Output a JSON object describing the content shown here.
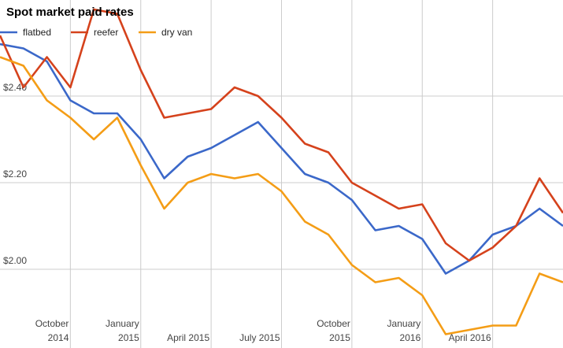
{
  "chart_data": {
    "type": "line",
    "title": "Spot market paid rates",
    "categories": [
      null,
      null,
      null,
      "October 2014",
      null,
      null,
      "January 2015",
      null,
      null,
      "April 2015",
      null,
      null,
      "July 2015",
      null,
      null,
      "October 2015",
      null,
      null,
      "January 2016",
      null,
      null,
      "April 2016",
      null,
      null,
      null
    ],
    "series": [
      {
        "name": "flatbed",
        "color": "#3b68c9",
        "values": [
          2.52,
          2.51,
          2.48,
          2.39,
          2.36,
          2.36,
          2.3,
          2.21,
          2.26,
          2.28,
          2.31,
          2.34,
          2.28,
          2.22,
          2.2,
          2.16,
          2.09,
          2.1,
          2.07,
          1.99,
          2.02,
          2.08,
          2.1,
          2.14,
          2.1
        ]
      },
      {
        "name": "reefer",
        "color": "#d5421c",
        "values": [
          2.54,
          2.42,
          2.49,
          2.42,
          2.6,
          2.59,
          2.46,
          2.35,
          2.36,
          2.37,
          2.42,
          2.4,
          2.35,
          2.29,
          2.27,
          2.2,
          2.17,
          2.14,
          2.15,
          2.06,
          2.02,
          2.05,
          2.1,
          2.21,
          2.13
        ]
      },
      {
        "name": "dry van",
        "color": "#f49d16",
        "values": [
          2.49,
          2.47,
          2.39,
          2.35,
          2.3,
          2.35,
          2.24,
          2.14,
          2.2,
          2.22,
          2.21,
          2.22,
          2.18,
          2.11,
          2.08,
          2.01,
          1.97,
          1.98,
          1.94,
          1.85,
          1.86,
          1.87,
          1.87,
          1.99,
          1.97
        ]
      }
    ],
    "ylim": [
      1.82,
      2.62
    ],
    "yticks": [
      {
        "value": 2.0,
        "label": "$2.00"
      },
      {
        "value": 2.2,
        "label": "$2.20"
      },
      {
        "value": 2.4,
        "label": "$2.40"
      }
    ],
    "grid": true,
    "legend": "top-left"
  }
}
